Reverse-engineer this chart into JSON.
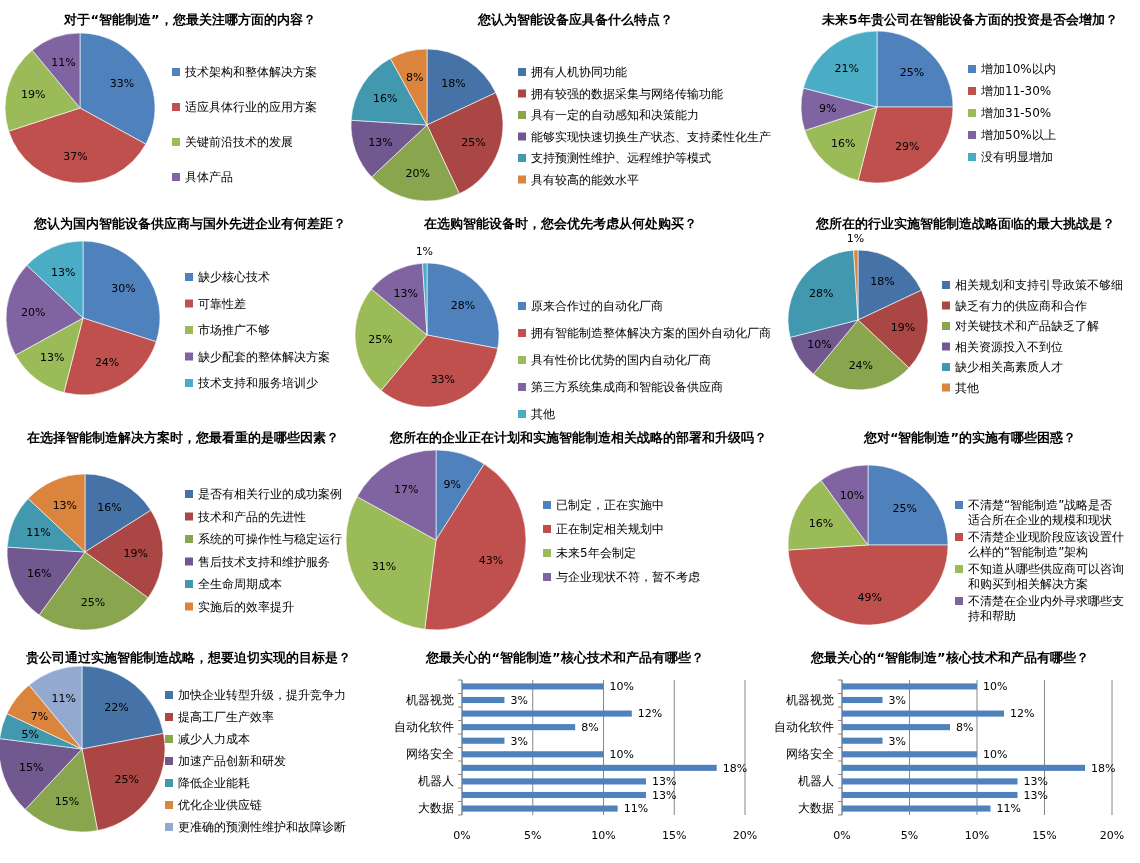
{
  "chart_data": [
    {
      "type": "pie",
      "title": "对于“智能制造”，您最关注哪方面的内容？",
      "categories": [
        "技术架构和整体解决方案",
        "适应具体行业的应用方案",
        "关键前沿技术的发展",
        "具体产品"
      ],
      "values": [
        33,
        37,
        19,
        11
      ],
      "value_labels": [
        "33%",
        "37%",
        "19%",
        "11%"
      ],
      "colors": [
        "#4f81bd",
        "#c0504d",
        "#9bbb59",
        "#8064a2"
      ],
      "legend": "right"
    },
    {
      "type": "pie",
      "title": "您认为智能设备应具备什么特点？",
      "categories": [
        "拥有人机协同功能",
        "拥有较强的数据采集与网络传输功能",
        "具有一定的自动感知和决策能力",
        "能够实现快速切换生产状态、支持柔性化生产",
        "支持预测性维护、远程维护等模式",
        "具有较高的能效水平"
      ],
      "values": [
        18,
        25,
        20,
        13,
        16,
        8
      ],
      "value_labels": [
        "18%",
        "25%",
        "20%",
        "13%",
        "16%",
        "8%"
      ],
      "colors": [
        "#4572a7",
        "#aa4643",
        "#89a54e",
        "#71588f",
        "#4198af",
        "#db843d"
      ],
      "legend": "right"
    },
    {
      "type": "pie",
      "title": "未来5年贵公司在智能设备方面的投资是否会增加？",
      "categories": [
        "增加10%以内",
        "增加11-30%",
        "增加31-50%",
        "增加50%以上",
        "没有明显增加"
      ],
      "values": [
        25,
        29,
        16,
        9,
        21
      ],
      "value_labels": [
        "25%",
        "29%",
        "16%",
        "9%",
        "21%"
      ],
      "colors": [
        "#4f81bd",
        "#c0504d",
        "#9bbb59",
        "#8064a2",
        "#4bacc6"
      ],
      "legend": "right"
    },
    {
      "type": "pie",
      "title": "您认为国内智能设备供应商与国外先进企业有何差距？",
      "categories": [
        "缺少核心技术",
        "可靠性差",
        "市场推广不够",
        "缺少配套的整体解决方案",
        "技术支持和服务培训少"
      ],
      "values": [
        30,
        24,
        13,
        20,
        13
      ],
      "value_labels": [
        "30%",
        "24%",
        "13%",
        "20%",
        "13%"
      ],
      "colors": [
        "#4f81bd",
        "#c0504d",
        "#9bbb59",
        "#8064a2",
        "#4bacc6"
      ],
      "legend": "right"
    },
    {
      "type": "pie",
      "title": "在选购智能设备时，您会优先考虑从何处购买？",
      "categories": [
        "原来合作过的自动化厂商",
        "拥有智能制造整体解决方案的国外自动化厂商",
        "具有性价比优势的国内自动化厂商",
        "第三方系统集成商和智能设备供应商",
        "其他"
      ],
      "values": [
        28,
        33,
        25,
        13,
        1
      ],
      "value_labels": [
        "28%",
        "33%",
        "25%",
        "13%",
        "1%"
      ],
      "colors": [
        "#4f81bd",
        "#c0504d",
        "#9bbb59",
        "#8064a2",
        "#4bacc6"
      ],
      "legend": "right"
    },
    {
      "type": "pie",
      "title": "您所在的行业实施智能制造战略面临的最大挑战是？",
      "categories": [
        "相关规划和支持引导政策不够细",
        "缺乏有力的供应商和合作",
        "对关键技术和产品缺乏了解",
        "相关资源投入不到位",
        "缺少相关高素质人才",
        "其他"
      ],
      "values": [
        18,
        19,
        24,
        10,
        28,
        1
      ],
      "value_labels": [
        "18%",
        "19%",
        "24%",
        "10%",
        "28%",
        "1%"
      ],
      "colors": [
        "#4572a7",
        "#aa4643",
        "#89a54e",
        "#71588f",
        "#4198af",
        "#db843d"
      ],
      "legend": "right"
    },
    {
      "type": "pie",
      "title": "在选择智能制造解决方案时，您最看重的是哪些因素？",
      "categories": [
        "是否有相关行业的成功案例",
        "技术和产品的先进性",
        "系统的可操作性与稳定运行",
        "售后技术支持和维护服务",
        "全生命周期成本",
        "实施后的效率提升"
      ],
      "values": [
        16,
        19,
        25,
        16,
        11,
        13
      ],
      "value_labels": [
        "16%",
        "19%",
        "25%",
        "16%",
        "11%",
        "13%"
      ],
      "colors": [
        "#4572a7",
        "#aa4643",
        "#89a54e",
        "#71588f",
        "#4198af",
        "#db843d"
      ],
      "legend": "right"
    },
    {
      "type": "pie",
      "title": "您所在的企业正在计划和实施智能制造相关战略的部署和升级吗？",
      "categories": [
        "已制定，正在实施中",
        "正在制定相关规划中",
        "未来5年会制定",
        "与企业现状不符，暂不考虑"
      ],
      "values": [
        9,
        43,
        31,
        17
      ],
      "value_labels": [
        "9%",
        "43%",
        "31%",
        "17%"
      ],
      "colors": [
        "#4f81bd",
        "#c0504d",
        "#9bbb59",
        "#8064a2"
      ],
      "legend": "right"
    },
    {
      "type": "pie",
      "title": "您对“智能制造”的实施有哪些困惑？",
      "categories": [
        "不清楚“智能制造”战略是否适合所在企业的规模和现状",
        "不清楚企业现阶段应该设置什么样的“智能制造”架构",
        "不知道从哪些供应商可以咨询和购买到相关解决方案",
        "不清楚在企业内外寻求哪些支持和帮助"
      ],
      "values": [
        25,
        49,
        16,
        10
      ],
      "value_labels": [
        "25%",
        "49%",
        "16%",
        "10%"
      ],
      "colors": [
        "#4f81bd",
        "#c0504d",
        "#9bbb59",
        "#8064a2"
      ],
      "legend": "right"
    },
    {
      "type": "pie",
      "title": "贵公司通过实施智能制造战略，想要迫切实现的目标是？",
      "categories": [
        "加快企业转型升级，提升竞争力",
        "提高工厂生产效率",
        "减少人力成本",
        "加速产品创新和研发",
        "降低企业能耗",
        "优化企业供应链",
        "更准确的预测性维护和故障诊断"
      ],
      "values": [
        22,
        25,
        15,
        15,
        5,
        7,
        11
      ],
      "value_labels": [
        "22%",
        "25%",
        "15%",
        "15%",
        "5%",
        "7%",
        "11%"
      ],
      "colors": [
        "#4572a7",
        "#aa4643",
        "#89a54e",
        "#71588f",
        "#4198af",
        "#db843d",
        "#93a9cf"
      ],
      "legend": "right"
    },
    {
      "type": "bar",
      "orientation": "horizontal",
      "title": "您最关心的“智能制造”核心技术和产品有哪些？",
      "categories": [
        null,
        "机器视觉",
        null,
        "自动化软件",
        null,
        "网络安全",
        null,
        "机器人",
        null,
        "大数据"
      ],
      "values": [
        10,
        3,
        12,
        8,
        3,
        10,
        18,
        13,
        13,
        11
      ],
      "value_labels": [
        "10%",
        "3%",
        "12%",
        "8%",
        "3%",
        "10%",
        "18%",
        "13%",
        "13%",
        "11%"
      ],
      "color": "#4f81bd",
      "xlim": [
        0,
        20
      ],
      "xticks": [
        {
          "value": 0,
          "label": "0%"
        },
        {
          "value": 5,
          "label": "5%"
        },
        {
          "value": 10,
          "label": "10%"
        },
        {
          "value": 15,
          "label": "15%"
        },
        {
          "value": 20,
          "label": "20%"
        }
      ],
      "grid": "x"
    },
    {
      "type": "bar",
      "orientation": "horizontal",
      "title": "您最关心的“智能制造”核心技术和产品有哪些？",
      "categories": [
        null,
        "机器视觉",
        null,
        "自动化软件",
        null,
        "网络安全",
        null,
        "机器人",
        null,
        "大数据"
      ],
      "values": [
        10,
        3,
        12,
        8,
        3,
        10,
        18,
        13,
        13,
        11
      ],
      "value_labels": [
        "10%",
        "3%",
        "12%",
        "8%",
        "3%",
        "10%",
        "18%",
        "13%",
        "13%",
        "11%"
      ],
      "color": "#4f81bd",
      "xlim": [
        0,
        20
      ],
      "xticks": [
        {
          "value": 0,
          "label": "0%"
        },
        {
          "value": 5,
          "label": "5%"
        },
        {
          "value": 10,
          "label": "10%"
        },
        {
          "value": 15,
          "label": "15%"
        },
        {
          "value": 20,
          "label": "20%"
        }
      ],
      "grid": "x"
    }
  ]
}
